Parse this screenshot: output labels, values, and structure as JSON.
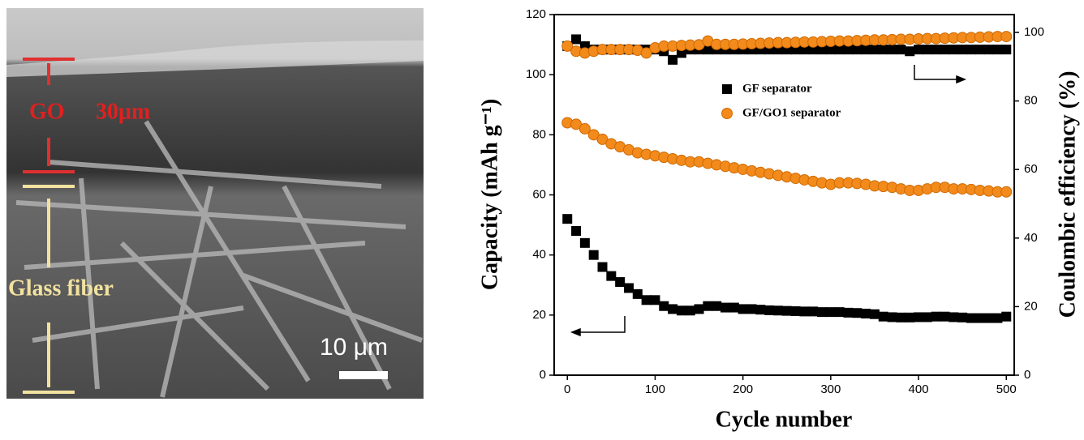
{
  "image": {
    "labels": [
      "GO",
      "30μm",
      "Glass fiber",
      "10 μm"
    ]
  },
  "chart_data": {
    "type": "scatter",
    "xlabel": "Cycle number",
    "ylabel": "Capacity (mAh g⁻¹)",
    "y2label": "Coulombic efficiency (%)",
    "xlim": [
      -15,
      509
    ],
    "xticks": [
      0,
      100,
      200,
      300,
      400,
      500
    ],
    "ylim": [
      0,
      120
    ],
    "yticks": [
      0,
      20,
      40,
      60,
      80,
      100,
      120
    ],
    "y2lim": [
      0,
      105.2
    ],
    "y2ticks": [
      0,
      20,
      40,
      60,
      80,
      100
    ],
    "legend": "upper-middle",
    "x": [
      0,
      10,
      20,
      30,
      40,
      50,
      60,
      70,
      80,
      90,
      100,
      110,
      120,
      130,
      140,
      150,
      160,
      170,
      180,
      190,
      200,
      210,
      220,
      230,
      240,
      250,
      260,
      270,
      280,
      290,
      300,
      310,
      320,
      330,
      340,
      350,
      360,
      370,
      380,
      390,
      400,
      410,
      420,
      430,
      440,
      450,
      460,
      470,
      480,
      490,
      500
    ],
    "series": [
      {
        "name": "GF separator",
        "color": "#000000",
        "marker": "square",
        "values": [
          52,
          48,
          44,
          40,
          36,
          33,
          31,
          29,
          27,
          25,
          25,
          23,
          22,
          21.5,
          21.5,
          22,
          23,
          23,
          22.5,
          22.5,
          22,
          22,
          21.8,
          21.6,
          21.5,
          21.4,
          21.3,
          21.2,
          21.2,
          21,
          21,
          21,
          20.8,
          20.7,
          20.5,
          20.3,
          19.5,
          19.3,
          19.2,
          19.2,
          19.3,
          19.3,
          19.5,
          19.5,
          19.3,
          19.2,
          19,
          19,
          19,
          19,
          19.5
        ]
      },
      {
        "name": "GF/GO1 separator",
        "color": "#f28a1c",
        "marker": "circle",
        "values": [
          84,
          83.5,
          82,
          80,
          78.5,
          77,
          76,
          75,
          74,
          73.5,
          73,
          72.5,
          72,
          71.5,
          71,
          71,
          70.5,
          70,
          69.5,
          69,
          68.5,
          68,
          67.5,
          67,
          66.5,
          66,
          65.5,
          65,
          64.5,
          64,
          63.5,
          64,
          64,
          63.8,
          63.5,
          63,
          62.8,
          62.5,
          62,
          61.5,
          61.5,
          62,
          62.5,
          62.5,
          62,
          62,
          61.8,
          61.5,
          61.3,
          61,
          61
        ]
      },
      {
        "name": "GF separator",
        "color": "#000000",
        "marker": "square",
        "axis": "y2",
        "values": [
          96,
          98,
          96,
          95,
          95,
          95,
          95,
          95,
          95,
          95,
          95,
          94.5,
          92,
          94,
          95,
          95,
          95,
          95,
          95,
          95,
          95,
          95,
          95,
          95,
          95,
          95,
          95,
          95,
          95,
          95,
          95,
          95,
          95,
          95,
          95,
          95,
          95,
          95,
          95,
          94.5,
          95,
          95,
          95,
          95,
          95,
          95,
          95,
          95,
          95,
          95,
          95
        ]
      },
      {
        "name": "GF/GO1 separator",
        "color": "#f28a1c",
        "marker": "circle",
        "axis": "y2",
        "values": [
          96,
          94.5,
          94,
          94.5,
          95,
          95,
          95,
          95,
          94.8,
          94,
          95.5,
          96,
          96,
          96.2,
          96.3,
          96.4,
          97.5,
          96.5,
          96.5,
          96.5,
          96.6,
          96.7,
          96.8,
          96.9,
          97,
          97,
          97.1,
          97.2,
          97.2,
          97.3,
          97.4,
          97.5,
          97.5,
          97.6,
          97.7,
          97.8,
          97.8,
          97.9,
          98,
          98,
          98.1,
          98.2,
          98.2,
          98.3,
          98.4,
          98.5,
          98.5,
          98.6,
          98.7,
          98.8,
          98.8
        ]
      }
    ]
  }
}
